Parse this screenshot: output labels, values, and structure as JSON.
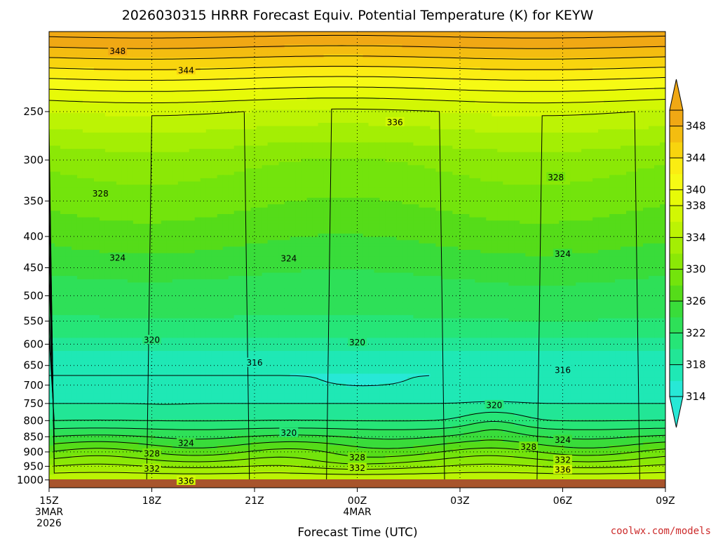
{
  "chart_data": {
    "type": "heatmap",
    "title": "2026030315 HRRR Forecast Equiv. Potential Temperature (K) for KEYW",
    "xlabel": "Forecast Time (UTC)",
    "ylabel": "",
    "x_ticks": [
      {
        "hour": 0,
        "label": "15Z",
        "sub1": "3MAR",
        "sub2": "2026"
      },
      {
        "hour": 3,
        "label": "18Z",
        "sub1": "",
        "sub2": ""
      },
      {
        "hour": 6,
        "label": "21Z",
        "sub1": "",
        "sub2": ""
      },
      {
        "hour": 9,
        "label": "00Z",
        "sub1": "4MAR",
        "sub2": ""
      },
      {
        "hour": 12,
        "label": "03Z",
        "sub1": "",
        "sub2": ""
      },
      {
        "hour": 15,
        "label": "06Z",
        "sub1": "",
        "sub2": ""
      },
      {
        "hour": 18,
        "label": "09Z",
        "sub1": "",
        "sub2": ""
      }
    ],
    "xlim": [
      0,
      18
    ],
    "ylim_hPa": [
      1030,
      185
    ],
    "y_scale": "log",
    "y_ticks": [
      250,
      300,
      350,
      400,
      450,
      500,
      550,
      600,
      650,
      700,
      750,
      800,
      850,
      900,
      950,
      1000
    ],
    "colorbar": {
      "levels": [
        314,
        316,
        318,
        320,
        322,
        324,
        326,
        328,
        330,
        332,
        334,
        336,
        338,
        340,
        342,
        344,
        346,
        348,
        350
      ],
      "tick_labels": [
        314,
        318,
        322,
        326,
        330,
        334,
        338,
        340,
        344,
        348
      ],
      "colors": [
        "#27e8d6",
        "#1fe8b5",
        "#22e696",
        "#26e577",
        "#2ee058",
        "#39dc3a",
        "#55dc19",
        "#73e40c",
        "#8be806",
        "#a4ee04",
        "#bcf304",
        "#d2f704",
        "#e7fa08",
        "#f6fa14",
        "#fbed12",
        "#f8d40e",
        "#f4bd10",
        "#f0a814"
      ],
      "extend": "both"
    },
    "profile_levels_hPa": [
      1000,
      975,
      950,
      925,
      900,
      875,
      850,
      825,
      800,
      775,
      750,
      725,
      700,
      675,
      650,
      625,
      600,
      575,
      550,
      525,
      500,
      475,
      450,
      425,
      400,
      375,
      350,
      325,
      300,
      275,
      250,
      225,
      200
    ],
    "profile_thetae_K": [
      336,
      334,
      332,
      330,
      328,
      326,
      324,
      322,
      320,
      319,
      318,
      317,
      316.5,
      316,
      316.5,
      317.5,
      319,
      320.5,
      321.5,
      322.5,
      323,
      323.5,
      324.5,
      325.5,
      326.5,
      327.5,
      328.5,
      329.5,
      330.5,
      333,
      336,
      341,
      347
    ],
    "contour_labels": [
      {
        "text": "348",
        "hour": 2.0,
        "p": 199
      },
      {
        "text": "344",
        "hour": 4.0,
        "p": 214
      },
      {
        "text": "336",
        "hour": 10.1,
        "p": 260
      },
      {
        "text": "328",
        "hour": 1.5,
        "p": 340
      },
      {
        "text": "328",
        "hour": 14.8,
        "p": 320
      },
      {
        "text": "324",
        "hour": 2.0,
        "p": 433
      },
      {
        "text": "324",
        "hour": 7.0,
        "p": 434
      },
      {
        "text": "324",
        "hour": 15.0,
        "p": 427
      },
      {
        "text": "320",
        "hour": 3.0,
        "p": 590
      },
      {
        "text": "320",
        "hour": 9.0,
        "p": 595
      },
      {
        "text": "316",
        "hour": 6.0,
        "p": 643
      },
      {
        "text": "316",
        "hour": 15.0,
        "p": 661
      },
      {
        "text": "320",
        "hour": 13.0,
        "p": 754
      },
      {
        "text": "320",
        "hour": 7.0,
        "p": 837
      },
      {
        "text": "324",
        "hour": 4.0,
        "p": 870
      },
      {
        "text": "324",
        "hour": 15.0,
        "p": 860
      },
      {
        "text": "328",
        "hour": 3.0,
        "p": 905
      },
      {
        "text": "328",
        "hour": 14.0,
        "p": 882
      },
      {
        "text": "328",
        "hour": 9.0,
        "p": 918
      },
      {
        "text": "332",
        "hour": 3.0,
        "p": 958
      },
      {
        "text": "332",
        "hour": 9.0,
        "p": 955
      },
      {
        "text": "332",
        "hour": 15.0,
        "p": 927
      },
      {
        "text": "336",
        "hour": 15.0,
        "p": 962
      },
      {
        "text": "336",
        "hour": 4.0,
        "p": 1003
      }
    ],
    "surface_color": "#a8542c",
    "credit": "coolwx.com/models"
  }
}
